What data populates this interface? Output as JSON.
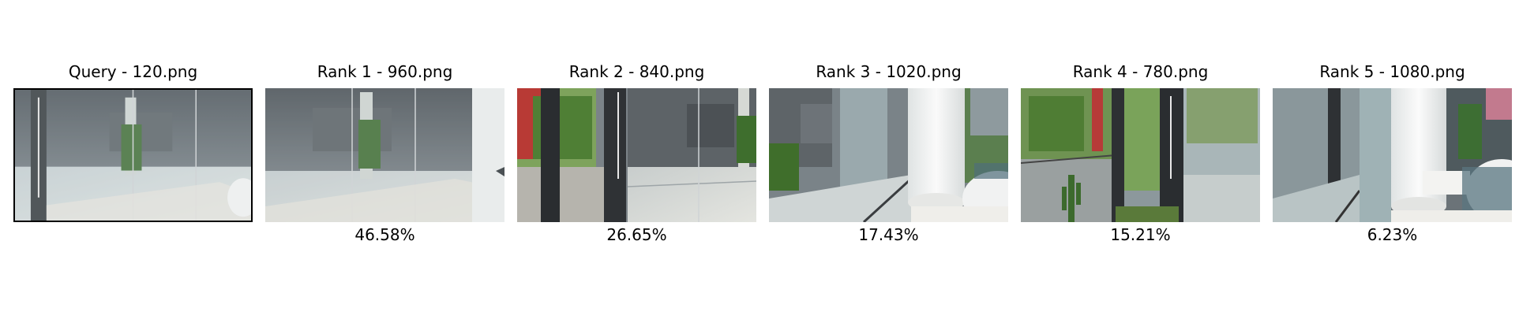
{
  "query": {
    "title": "Query - 120.png"
  },
  "results": [
    {
      "title": "Rank 1 - 960.png",
      "score": "46.58%"
    },
    {
      "title": "Rank 2 - 840.png",
      "score": "26.65%"
    },
    {
      "title": "Rank 3 - 1020.png",
      "score": "17.43%"
    },
    {
      "title": "Rank 4 - 780.png",
      "score": "15.21%"
    },
    {
      "title": "Rank 5 - 1080.png",
      "score": "6.23%"
    }
  ],
  "colors": {
    "query_border": "#000000",
    "background": "#ffffff"
  }
}
